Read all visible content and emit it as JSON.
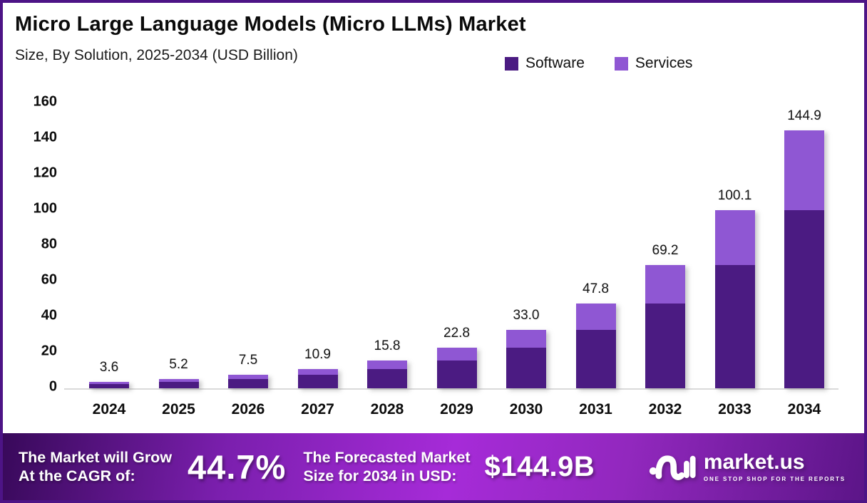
{
  "header": {
    "title": "Micro Large Language Models (Micro LLMs) Market",
    "subtitle": "Size, By Solution, 2025-2034 (USD Billion)"
  },
  "legend": [
    {
      "label": "Software",
      "color": "#4B1B82"
    },
    {
      "label": "Services",
      "color": "#8F57D3"
    }
  ],
  "chart_data": {
    "type": "bar",
    "stacked": true,
    "title": "Micro Large Language Models (Micro LLMs) Market",
    "subtitle": "Size, By Solution, 2025-2034 (USD Billion)",
    "categories": [
      "2024",
      "2025",
      "2026",
      "2027",
      "2028",
      "2029",
      "2030",
      "2031",
      "2032",
      "2033",
      "2034"
    ],
    "series": [
      {
        "name": "Software",
        "color": "#4B1B82",
        "values": [
          2.5,
          3.6,
          5.2,
          7.5,
          10.9,
          15.8,
          22.8,
          33.0,
          47.8,
          69.2,
          100.1
        ]
      },
      {
        "name": "Services",
        "color": "#8F57D3",
        "values": [
          1.1,
          1.6,
          2.3,
          3.4,
          4.9,
          7.0,
          10.2,
          14.8,
          21.4,
          30.9,
          44.8
        ]
      }
    ],
    "totals": [
      3.6,
      5.2,
      7.5,
      10.9,
      15.8,
      22.8,
      33.0,
      47.8,
      69.2,
      100.1,
      144.9
    ],
    "total_labels": [
      "3.6",
      "5.2",
      "7.5",
      "10.9",
      "15.8",
      "22.8",
      "33.0",
      "47.8",
      "69.2",
      "100.1",
      "144.9"
    ],
    "xlabel": "",
    "ylabel": "",
    "ylim": [
      0,
      160
    ],
    "y_ticks": [
      0,
      20,
      40,
      60,
      80,
      100,
      120,
      140,
      160
    ],
    "grid": false,
    "legend_position": "top-right"
  },
  "banner": {
    "cagr_label_line1": "The Market will Grow",
    "cagr_label_line2": "At the CAGR of:",
    "cagr_value": "44.7%",
    "forecast_label_line1": "The Forecasted Market",
    "forecast_label_line2": "Size for 2034 in USD:",
    "forecast_value": "$144.9B",
    "logo_name": "market.us",
    "logo_tagline": "ONE STOP SHOP FOR THE REPORTS"
  },
  "colors": {
    "frame_border": "#4D1486",
    "software": "#4B1B82",
    "services": "#8F57D3",
    "axis_line": "#dadada",
    "banner_gradient_mid": "#A62BD8"
  }
}
